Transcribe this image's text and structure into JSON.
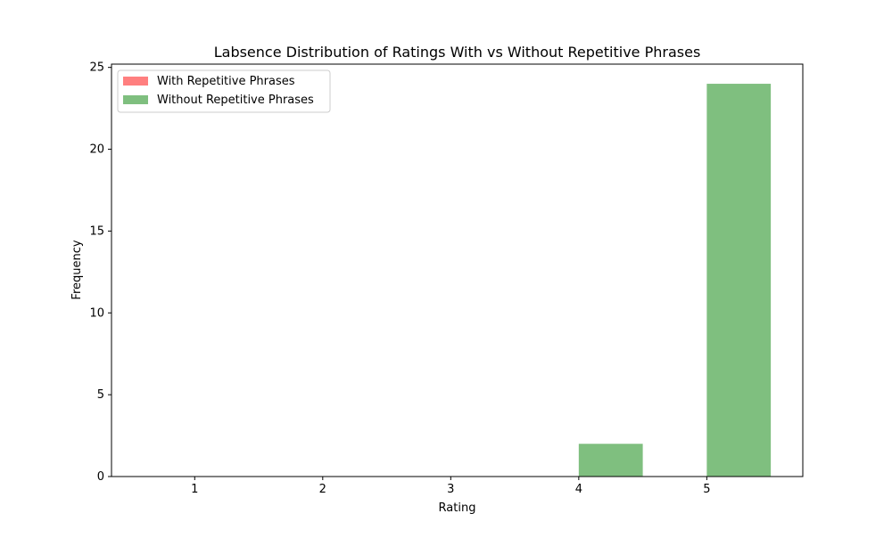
{
  "chart_data": {
    "type": "bar",
    "title": "Labsence Distribution of Ratings With vs Without Repetitive Phrases",
    "xlabel": "Rating",
    "ylabel": "Frequency",
    "x_ticks": [
      "1",
      "2",
      "3",
      "4",
      "5"
    ],
    "y_ticks": [
      "0",
      "5",
      "10",
      "15",
      "20",
      "25"
    ],
    "xlim": [
      0.35,
      5.75
    ],
    "ylim": [
      0,
      25.2
    ],
    "grid": false,
    "legend_position": "top-left",
    "series": [
      {
        "name": "With Repetitive Phrases",
        "color": "#ff0000",
        "opacity": 0.5,
        "bins": []
      },
      {
        "name": "Without Repetitive Phrases",
        "color": "#008000",
        "opacity": 0.5,
        "bins": [
          {
            "x_start": 1.0,
            "x_end": 1.5,
            "value": 0
          },
          {
            "x_start": 2.0,
            "x_end": 2.5,
            "value": 0
          },
          {
            "x_start": 3.0,
            "x_end": 3.5,
            "value": 0
          },
          {
            "x_start": 4.0,
            "x_end": 4.5,
            "value": 2
          },
          {
            "x_start": 5.0,
            "x_end": 5.5,
            "value": 24
          }
        ]
      }
    ]
  }
}
